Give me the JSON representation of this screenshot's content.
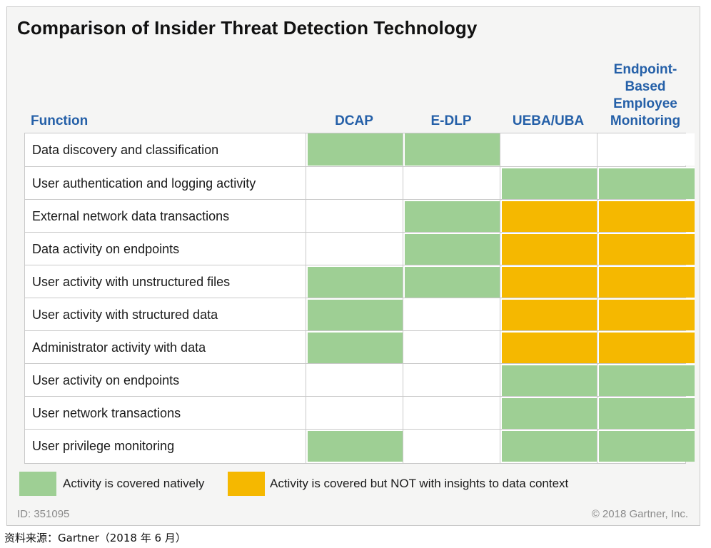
{
  "chart_data": {
    "type": "table",
    "title": "Comparison of Insider Threat Detection Technology",
    "row_header": "Function",
    "columns": [
      "DCAP",
      "E-DLP",
      "UEBA/UBA",
      "Endpoint-Based Employee Monitoring"
    ],
    "column_header_lines": [
      [
        "DCAP"
      ],
      [
        "E-DLP"
      ],
      [
        "UEBA/UBA"
      ],
      [
        "Endpoint-",
        "Based",
        "Employee",
        "Monitoring"
      ]
    ],
    "rows": [
      {
        "label": "Data discovery and classification",
        "values": [
          "native",
          "native",
          "none",
          "none"
        ]
      },
      {
        "label": "User authentication and logging activity",
        "values": [
          "none",
          "none",
          "native",
          "native"
        ]
      },
      {
        "label": "External network data transactions",
        "values": [
          "none",
          "native",
          "partial",
          "partial"
        ]
      },
      {
        "label": "Data activity on endpoints",
        "values": [
          "none",
          "native",
          "partial",
          "partial"
        ]
      },
      {
        "label": "User activity with unstructured files",
        "values": [
          "native",
          "native",
          "partial",
          "partial"
        ]
      },
      {
        "label": "User activity with structured data",
        "values": [
          "native",
          "none",
          "partial",
          "partial"
        ]
      },
      {
        "label": "Administrator activity with data",
        "values": [
          "native",
          "none",
          "partial",
          "partial"
        ]
      },
      {
        "label": "User activity on endpoints",
        "values": [
          "none",
          "none",
          "native",
          "native"
        ]
      },
      {
        "label": "User network transactions",
        "values": [
          "none",
          "none",
          "native",
          "native"
        ]
      },
      {
        "label": "User privilege monitoring",
        "values": [
          "native",
          "none",
          "native",
          "native"
        ]
      }
    ],
    "legend": [
      {
        "key": "native",
        "label": "Activity is covered natively",
        "color": "#9ecf94"
      },
      {
        "key": "partial",
        "label": "Activity is covered but NOT with insights to data context",
        "color": "#f5b800"
      }
    ],
    "colors": {
      "native": "#9ecf94",
      "partial": "#f5b800",
      "none": "#ffffff"
    }
  },
  "footer": {
    "id": "ID: 351095",
    "copyright": "© 2018 Gartner, Inc."
  },
  "source": "资料来源：Gartner（2018 年 6 月）"
}
